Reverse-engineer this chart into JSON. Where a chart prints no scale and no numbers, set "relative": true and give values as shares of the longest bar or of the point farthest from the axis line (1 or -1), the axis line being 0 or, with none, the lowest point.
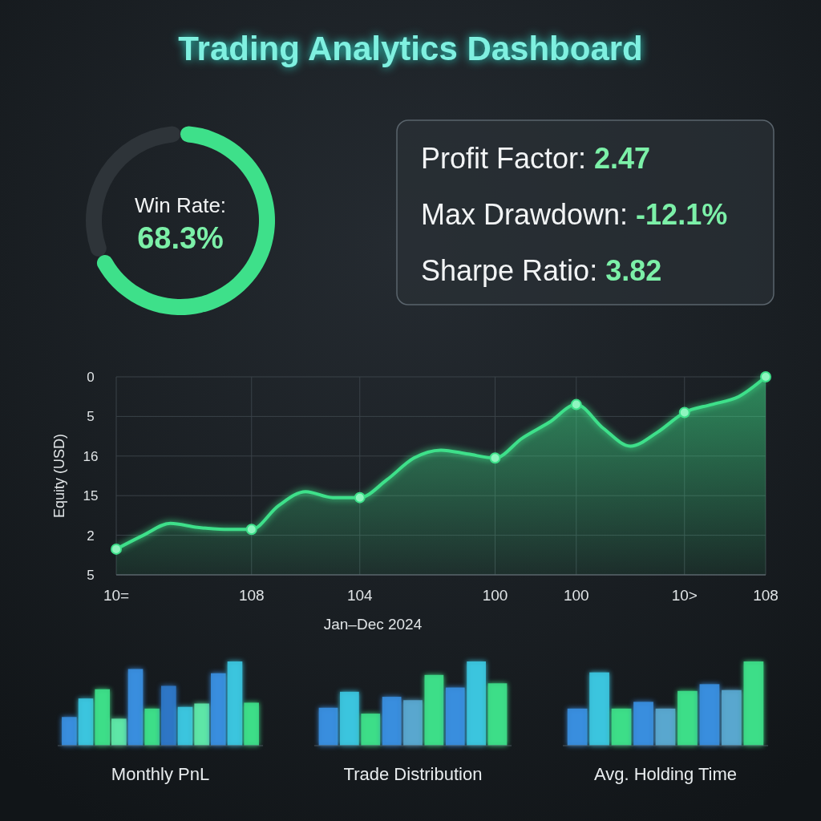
{
  "chart_data": [
    {
      "type": "other",
      "title": "Trading Analytics Dashboard"
    },
    {
      "type": "donut",
      "title": "Win Rate:",
      "categories": [
        null,
        null
      ],
      "values": [
        68.3,
        31.7
      ],
      "colors": [
        "#3ee08a",
        "#2e3439"
      ],
      "value_labels": [
        "68.3%",
        null
      ]
    },
    {
      "type": "other",
      "annotations": [
        "Profit Factor: 2.47",
        "Max Drawdown: -12.1%",
        "Sharpe Ratio: 3.82"
      ]
    },
    {
      "type": "area",
      "relative": true,
      "xlabel": "Jan–Dec 2024",
      "ylabel": "Equity (USD)",
      "grid": true,
      "annotations": [
        "0",
        "5",
        "16",
        "15",
        "2",
        "5"
      ],
      "categories": [
        "10=",
        null,
        null,
        null,
        null,
        "108",
        null,
        null,
        null,
        "104",
        null,
        null,
        null,
        null,
        "100",
        null,
        null,
        "100",
        null,
        null,
        null,
        "10>",
        null,
        null,
        "108"
      ],
      "series": [
        {
          "type": "area",
          "color": "#3ee08a",
          "values": [
            0.13,
            0.2,
            0.26,
            0.24,
            0.23,
            0.23,
            0.35,
            0.42,
            0.39,
            0.39,
            0.48,
            0.59,
            0.63,
            0.61,
            0.59,
            0.69,
            0.77,
            0.86,
            0.74,
            0.65,
            0.72,
            0.82,
            0.86,
            0.9,
            1
          ]
        },
        {
          "type": "scatter",
          "color": "#8ff5bf",
          "marker": "circle",
          "values": [
            0.13,
            null,
            null,
            null,
            null,
            0.23,
            null,
            null,
            null,
            0.39,
            null,
            null,
            null,
            null,
            0.59,
            null,
            null,
            0.86,
            null,
            null,
            null,
            0.82,
            null,
            null,
            1
          ]
        }
      ]
    },
    {
      "type": "bar",
      "relative": true,
      "xlabel": "Monthly PnL",
      "categories": [
        null,
        null,
        null,
        null,
        null,
        null,
        null,
        null,
        null,
        null,
        null,
        null
      ],
      "values": [
        0.34,
        0.56,
        0.67,
        0.32,
        0.91,
        0.44,
        0.71,
        0.46,
        0.5,
        0.86,
        1,
        0.51
      ],
      "colors": [
        "#3a8fe0",
        "#3cc6e0",
        "#3ee08a",
        "#5fe8a8",
        "#3a8fe0",
        "#3ee08a",
        "#2f78c8",
        "#3cc6e0",
        "#5fe8a8",
        "#3a8fe0",
        "#3cc6e0",
        "#3ee08a"
      ]
    },
    {
      "type": "bar",
      "relative": true,
      "xlabel": "Trade Distribution",
      "categories": [
        null,
        null,
        null,
        null,
        null,
        null,
        null,
        null,
        null
      ],
      "values": [
        0.45,
        0.64,
        0.38,
        0.58,
        0.54,
        0.84,
        0.69,
        1,
        0.74
      ],
      "colors": [
        "#3a8fe0",
        "#3cc6e0",
        "#3ee08a",
        "#3a8fe0",
        "#5aa8d0",
        "#3ee08a",
        "#3a8fe0",
        "#3cc6e0",
        "#3ee08a"
      ]
    },
    {
      "type": "bar",
      "relative": true,
      "xlabel": "Avg. Holding Time",
      "categories": [
        null,
        null,
        null,
        null,
        null,
        null,
        null,
        null,
        null
      ],
      "values": [
        0.44,
        0.87,
        0.44,
        0.52,
        0.44,
        0.65,
        0.73,
        0.66,
        1
      ],
      "colors": [
        "#3a8fe0",
        "#3cc6e0",
        "#3ee08a",
        "#3a8fe0",
        "#5aa8d0",
        "#3ee08a",
        "#3a8fe0",
        "#5aa8d0",
        "#3ee08a"
      ]
    }
  ]
}
